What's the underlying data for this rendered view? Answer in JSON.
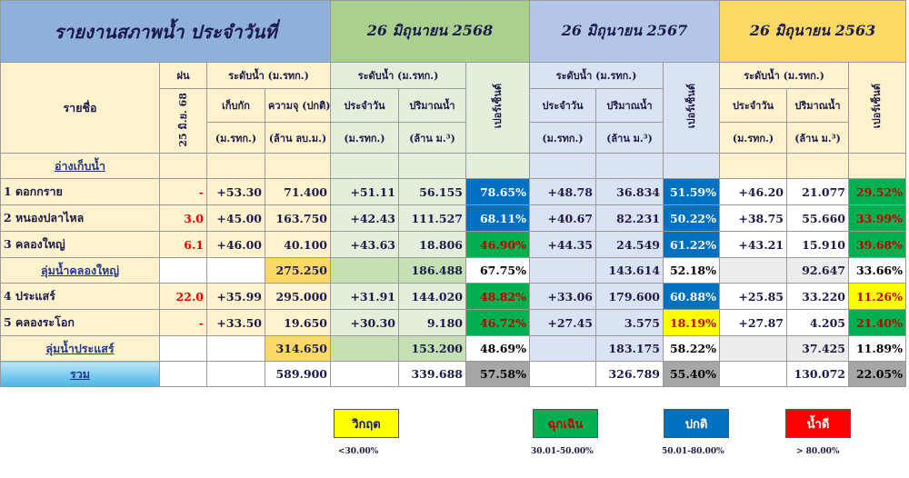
{
  "header": {
    "title": "รายงานสภาพน้ำ ประจำวันที่",
    "year1": "26 มิถุนายน 2568",
    "year2": "26 มิถุนายน 2567",
    "year3": "26 มิถุนายน 2563"
  },
  "columns": {
    "name": "รายชื่อ",
    "rain": "ฝน",
    "rain_date": "25 มิ.ย. 68",
    "level_group": "ระดับน้ำ (ม.รทก.)",
    "storage": "เก็บกัก",
    "capacity": "ความจุ (ปกติ)",
    "mrtg": "(ม.รทก.)",
    "mcm": "(ล้าน ลบ.ม.)",
    "daily": "ประจำวัน",
    "volume": "ปริมาณน้ำ",
    "volume_unit": "(ล้าน ม.³)",
    "percent": "เปอร์เซ็นต์"
  },
  "section_title": "อ่างเก็บน้ำ",
  "rows": [
    {
      "name": "1 ดอกกราย",
      "rain": "-",
      "storage": "+53.30",
      "capacity": "71.400",
      "y1_level": "+51.11",
      "y1_vol": "56.155",
      "y1_pct": "78.65%",
      "y2_level": "+48.78",
      "y2_vol": "36.834",
      "y2_pct": "51.59%",
      "y3_level": "+46.20",
      "y3_vol": "21.077",
      "y3_pct": "29.52%"
    },
    {
      "name": "2 หนองปลาไหล",
      "rain": "3.0",
      "storage": "+45.00",
      "capacity": "163.750",
      "y1_level": "+42.43",
      "y1_vol": "111.527",
      "y1_pct": "68.11%",
      "y2_level": "+40.67",
      "y2_vol": "82.231",
      "y2_pct": "50.22%",
      "y3_level": "+38.75",
      "y3_vol": "55.660",
      "y3_pct": "33.99%"
    },
    {
      "name": "3 คลองใหญ่",
      "rain": "6.1",
      "storage": "+46.00",
      "capacity": "40.100",
      "y1_level": "+43.63",
      "y1_vol": "18.806",
      "y1_pct": "46.90%",
      "y2_level": "+44.35",
      "y2_vol": "24.549",
      "y2_pct": "61.22%",
      "y3_level": "+43.21",
      "y3_vol": "15.910",
      "y3_pct": "39.68%"
    },
    {
      "name": "ลุ่มน้ำคลองใหญ่",
      "capacity": "275.250",
      "y1_vol": "186.488",
      "y1_pct": "67.75%",
      "y2_vol": "143.614",
      "y2_pct": "52.18%",
      "y3_vol": "92.647",
      "y3_pct": "33.66%"
    },
    {
      "name": "4 ประแสร์",
      "rain": "22.0",
      "storage": "+35.99",
      "capacity": "295.000",
      "y1_level": "+31.91",
      "y1_vol": "144.020",
      "y1_pct": "48.82%",
      "y2_level": "+33.06",
      "y2_vol": "179.600",
      "y2_pct": "60.88%",
      "y3_level": "+25.85",
      "y3_vol": "33.220",
      "y3_pct": "11.26%"
    },
    {
      "name": "5 คลองระโอก",
      "rain": "-",
      "storage": "+33.50",
      "capacity": "19.650",
      "y1_level": "+30.30",
      "y1_vol": "9.180",
      "y1_pct": "46.72%",
      "y2_level": "+27.45",
      "y2_vol": "3.575",
      "y2_pct": "18.19%",
      "y3_level": "+27.87",
      "y3_vol": "4.205",
      "y3_pct": "21.40%"
    },
    {
      "name": "ลุ่มน้ำประแสร์",
      "capacity": "314.650",
      "y1_vol": "153.200",
      "y1_pct": "48.69%",
      "y2_vol": "183.175",
      "y2_pct": "58.22%",
      "y3_vol": "37.425",
      "y3_pct": "11.89%"
    },
    {
      "name": "รวม",
      "capacity": "589.900",
      "y1_vol": "339.688",
      "y1_pct": "57.58%",
      "y2_vol": "326.789",
      "y2_pct": "55.40%",
      "y3_vol": "130.072",
      "y3_pct": "22.05%"
    }
  ],
  "legend": [
    {
      "label": "วิกฤต",
      "range": "<30.00%",
      "color": "#ffff00"
    },
    {
      "label": "ฉุกเฉิน",
      "range": "30.01-50.00%",
      "color": "#00b050"
    },
    {
      "label": "ปกติ",
      "range": "50.01-80.00%",
      "color": "#0070c0"
    },
    {
      "label": "น้ำดี",
      "range": "> 80.00%",
      "color": "#ff0000"
    }
  ]
}
